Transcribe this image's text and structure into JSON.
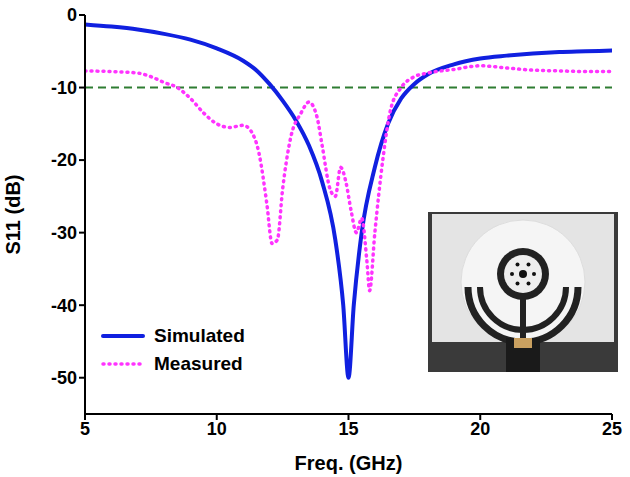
{
  "chart_data": {
    "type": "line",
    "xlabel": "Freq. (GHz)",
    "ylabel": "S11 (dB)",
    "xlim": [
      5,
      25
    ],
    "xticks": [
      5,
      10,
      15,
      20,
      25
    ],
    "ylim": [
      -55,
      0
    ],
    "yticks": [
      0,
      -10,
      -20,
      -30,
      -40,
      -50
    ],
    "threshold": -10,
    "legend": "lower left",
    "grid": false,
    "series": [
      {
        "name": "Simulated",
        "color": "#1020e0",
        "line_style": "solid",
        "x": [
          5,
          6,
          7,
          8,
          9,
          10,
          11,
          11.5,
          12,
          12.5,
          13,
          13.5,
          14,
          14.5,
          14.8,
          15,
          15.2,
          15.5,
          16,
          16.5,
          17,
          17.5,
          18,
          19,
          20,
          21,
          22,
          23,
          24,
          25
        ],
        "values": [
          -1.3,
          -1.6,
          -2.0,
          -2.6,
          -3.4,
          -4.6,
          -6.3,
          -7.6,
          -9.5,
          -11.8,
          -14.5,
          -18,
          -23,
          -31,
          -40,
          -50,
          -40,
          -30,
          -21,
          -15,
          -11.5,
          -9.5,
          -8.2,
          -6.8,
          -6.0,
          -5.6,
          -5.3,
          -5.1,
          -5.0,
          -4.9
        ]
      },
      {
        "name": "Measured",
        "color": "#ff33ff",
        "line_style": "dotted",
        "x": [
          5,
          6,
          7,
          7.5,
          8,
          8.5,
          9,
          9.5,
          10,
          10.5,
          11,
          11.3,
          11.6,
          11.9,
          12.1,
          12.3,
          12.5,
          12.8,
          13.2,
          13.5,
          13.8,
          14,
          14.3,
          14.5,
          14.7,
          14.9,
          15.1,
          15.3,
          15.5,
          15.7,
          15.8,
          16,
          16.3,
          16.6,
          17,
          17.5,
          18,
          19,
          20,
          21,
          22,
          23,
          24,
          25
        ],
        "values": [
          -7.7,
          -7.8,
          -8,
          -8.5,
          -9.3,
          -10,
          -11.5,
          -13.5,
          -15,
          -15.5,
          -15.2,
          -16,
          -19,
          -26,
          -31.5,
          -31,
          -24,
          -17,
          -13.5,
          -12,
          -14,
          -18,
          -24,
          -25,
          -21,
          -23,
          -27,
          -30,
          -28,
          -34,
          -38,
          -30,
          -20,
          -13,
          -10,
          -8.5,
          -8,
          -7.5,
          -7,
          -7.3,
          -7.6,
          -7.7,
          -7.8,
          -7.8
        ]
      }
    ]
  }
}
